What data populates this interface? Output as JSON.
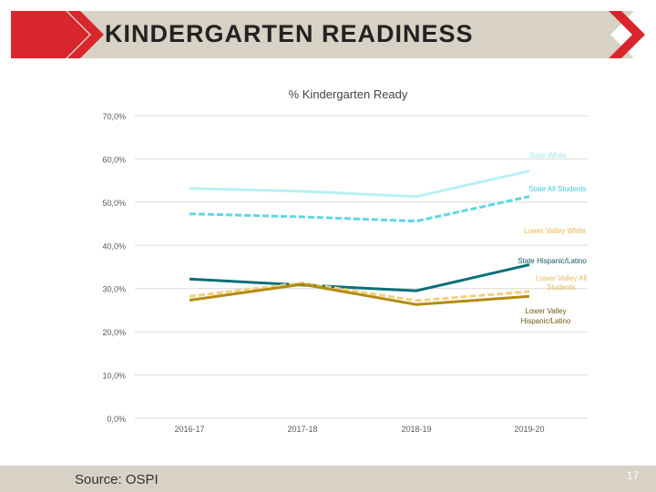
{
  "header": {
    "title": "KINDERGARTEN READINESS"
  },
  "footer": {
    "source": "Source:  OSPI",
    "page_number": "17"
  },
  "colors": {
    "banner": "#d8d2c6",
    "accent_red": "#d9262c"
  },
  "chart_data": {
    "type": "line",
    "title": "% Kindergarten Ready",
    "categories": [
      "2016-17",
      "2017-18",
      "2018-19",
      "2019-20"
    ],
    "ylim": [
      0,
      70
    ],
    "yticks": [
      "0,0%",
      "10,0%",
      "20,0%",
      "30,0%",
      "40,0%",
      "50,0%",
      "60,0%",
      "70,0%"
    ],
    "ytick_values": [
      0,
      10,
      20,
      30,
      40,
      50,
      60,
      70
    ],
    "grid": true,
    "series": [
      {
        "name": "State White",
        "values": [
          53.2,
          52.5,
          51.3,
          57.2
        ],
        "color": "#b8f0f4",
        "dash": false,
        "label_color": "#a8e6ee"
      },
      {
        "name": "State All Students",
        "values": [
          47.3,
          46.6,
          45.6,
          51.3
        ],
        "color": "#5fd7e4",
        "dash": true,
        "label_color": "#3fc8d8"
      },
      {
        "name": "Lower Valley White",
        "values": [
          null,
          null,
          null,
          null
        ],
        "color": "#f1b24a",
        "dash": false,
        "label_color": "#f1b24a"
      },
      {
        "name": "State Hispanic/Latino",
        "values": [
          32.2,
          30.8,
          29.5,
          35.5
        ],
        "color": "#0a6f7a",
        "dash": false,
        "label_color": "#0a5a66"
      },
      {
        "name": "Lower Valley All Students",
        "values": [
          28.2,
          31.3,
          27.2,
          29.3
        ],
        "color": "#f3cf7e",
        "dash": true,
        "label_color": "#e9b85c"
      },
      {
        "name": "Lower Valley Hispanic/Latino",
        "values": [
          27.3,
          31.0,
          26.3,
          28.2
        ],
        "color": "#b28b12",
        "dash": false,
        "label_color": "#6e5a10"
      }
    ]
  }
}
